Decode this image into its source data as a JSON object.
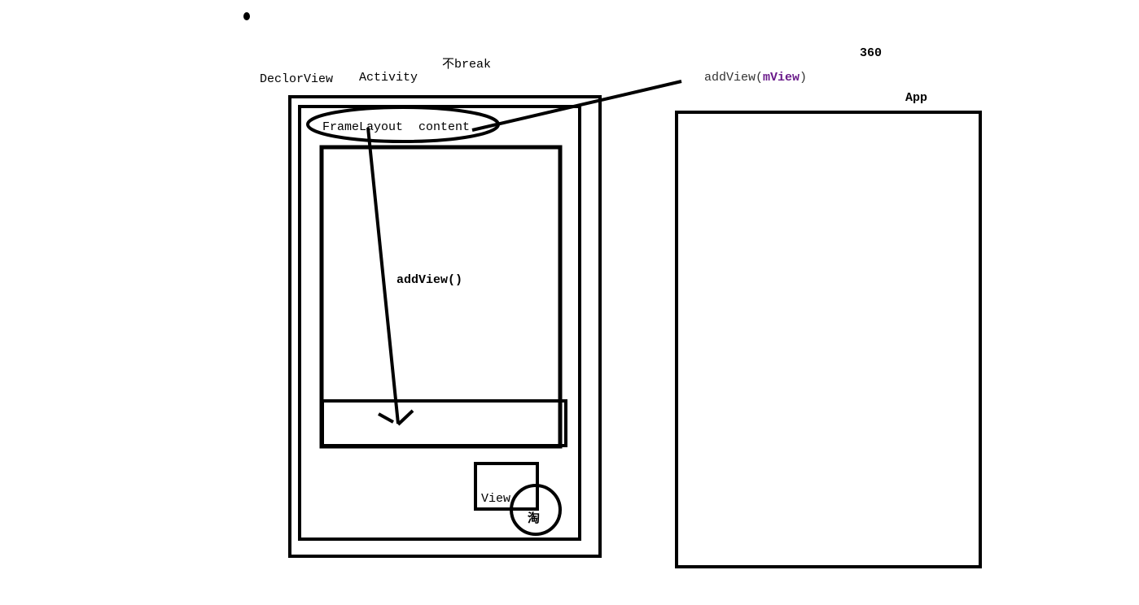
{
  "labels": {
    "decorview": "DeclorView",
    "activity": "Activity",
    "no_break_prefix": "不",
    "no_break_word": "break",
    "num_360": "360",
    "app": "App",
    "addview_call_prefix": "addView(",
    "addview_call_arg": "mView",
    "addview_call_suffix": ")",
    "framelayout": "FrameLayout",
    "content": "content",
    "addview_inner": "addView()",
    "view": "View",
    "tao": "淘"
  },
  "colors": {
    "stroke": "#000000",
    "accent_arg": "#6a1b8a",
    "label_gray": "#333333"
  }
}
